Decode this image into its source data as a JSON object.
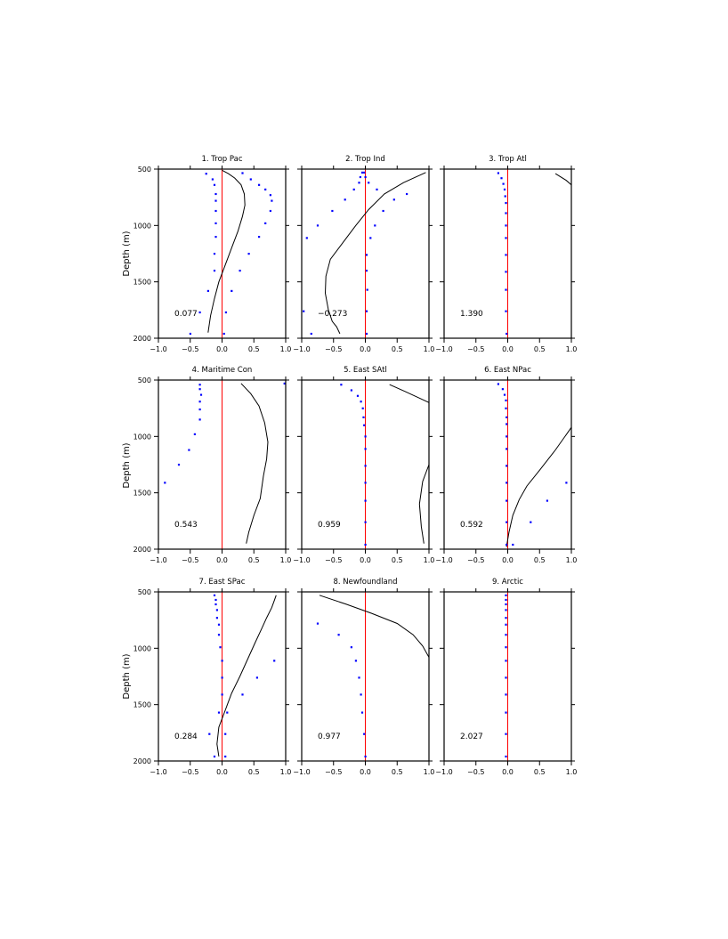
{
  "figure": {
    "ylabel": "Depth (m)"
  },
  "axes": {
    "x_ticks": [
      -1.0,
      -0.5,
      0.0,
      0.5,
      1.0
    ],
    "x_tick_labels": [
      "−1.0",
      "−0.5",
      "0.0",
      "0.5",
      "1.0"
    ],
    "y_ticks": [
      500,
      1000,
      1500,
      2000
    ],
    "y_tick_labels": [
      "500",
      "1000",
      "1500",
      "2000"
    ],
    "xlim": [
      -1.0,
      1.0
    ],
    "ylim": [
      2000,
      500
    ]
  },
  "colors": {
    "line": "#000000",
    "dots": "#0000ff",
    "zero_line": "#ff0000",
    "frame": "#000000"
  },
  "chart_data": [
    {
      "type": "line",
      "title": "1. Trop Pac",
      "value_label": "0.077",
      "series": [
        {
          "name": "",
          "style": "line",
          "points": [
            [
              0.0,
              510
            ],
            [
              0.1,
              540
            ],
            [
              0.2,
              580
            ],
            [
              0.3,
              640
            ],
            [
              0.35,
              720
            ],
            [
              0.36,
              820
            ],
            [
              0.32,
              920
            ],
            [
              0.25,
              1050
            ],
            [
              0.15,
              1200
            ],
            [
              0.05,
              1350
            ],
            [
              -0.05,
              1500
            ],
            [
              -0.12,
              1650
            ],
            [
              -0.18,
              1800
            ],
            [
              -0.22,
              1950
            ]
          ]
        },
        {
          "name": "",
          "style": "dots",
          "points": [
            [
              -0.25,
              540
            ],
            [
              -0.15,
              590
            ],
            [
              -0.12,
              640
            ],
            [
              -0.1,
              720
            ],
            [
              -0.1,
              780
            ],
            [
              -0.1,
              870
            ],
            [
              -0.1,
              980
            ],
            [
              -0.1,
              1100
            ],
            [
              -0.12,
              1250
            ],
            [
              -0.12,
              1400
            ],
            [
              -0.22,
              1580
            ],
            [
              -0.35,
              1770
            ],
            [
              -0.5,
              1960
            ],
            [
              0.32,
              535
            ],
            [
              0.45,
              590
            ],
            [
              0.58,
              640
            ],
            [
              0.68,
              680
            ],
            [
              0.76,
              730
            ],
            [
              0.78,
              780
            ],
            [
              0.76,
              870
            ],
            [
              0.68,
              980
            ],
            [
              0.58,
              1100
            ],
            [
              0.42,
              1250
            ],
            [
              0.28,
              1400
            ],
            [
              0.15,
              1580
            ],
            [
              0.06,
              1770
            ],
            [
              0.03,
              1960
            ]
          ]
        }
      ]
    },
    {
      "type": "line",
      "title": "2. Trop Ind",
      "value_label": "−0.273",
      "series": [
        {
          "name": "",
          "style": "line",
          "points": [
            [
              0.95,
              530
            ],
            [
              0.6,
              620
            ],
            [
              0.3,
              720
            ],
            [
              0.05,
              860
            ],
            [
              -0.15,
              1000
            ],
            [
              -0.35,
              1150
            ],
            [
              -0.55,
              1300
            ],
            [
              -0.62,
              1450
            ],
            [
              -0.63,
              1600
            ],
            [
              -0.58,
              1750
            ],
            [
              -0.52,
              1850
            ],
            [
              -0.45,
              1900
            ],
            [
              -0.4,
              1960
            ]
          ]
        },
        {
          "name": "",
          "style": "dots",
          "points": [
            [
              -0.05,
              530
            ],
            [
              -0.08,
              570
            ],
            [
              -0.1,
              620
            ],
            [
              -0.18,
              680
            ],
            [
              -0.32,
              770
            ],
            [
              -0.52,
              870
            ],
            [
              -0.75,
              1000
            ],
            [
              -0.92,
              1110
            ],
            [
              -0.97,
              1760
            ],
            [
              -0.85,
              1960
            ],
            [
              -0.02,
              530
            ],
            [
              0.0,
              570
            ],
            [
              0.05,
              620
            ],
            [
              0.18,
              680
            ],
            [
              0.65,
              720
            ],
            [
              0.45,
              770
            ],
            [
              0.28,
              870
            ],
            [
              0.15,
              1000
            ],
            [
              0.08,
              1110
            ],
            [
              0.02,
              1260
            ],
            [
              0.02,
              1400
            ],
            [
              0.03,
              1570
            ],
            [
              0.02,
              1760
            ],
            [
              0.02,
              1960
            ]
          ]
        }
      ]
    },
    {
      "type": "line",
      "title": "3. Trop Atl",
      "value_label": "1.390",
      "series": [
        {
          "name": "",
          "style": "line",
          "points": [
            [
              0.75,
              540
            ],
            [
              0.92,
              600
            ],
            [
              1.0,
              640
            ]
          ]
        },
        {
          "name": "",
          "style": "dots",
          "points": [
            [
              -0.15,
              535
            ],
            [
              -0.1,
              580
            ],
            [
              -0.07,
              630
            ],
            [
              -0.05,
              680
            ],
            [
              -0.04,
              740
            ],
            [
              -0.03,
              800
            ],
            [
              -0.03,
              890
            ],
            [
              -0.03,
              1000
            ],
            [
              -0.03,
              1110
            ],
            [
              -0.03,
              1260
            ],
            [
              -0.03,
              1410
            ],
            [
              -0.03,
              1570
            ],
            [
              -0.03,
              1760
            ],
            [
              -0.02,
              1960
            ]
          ]
        }
      ]
    },
    {
      "type": "line",
      "title": "4. Maritime Con",
      "value_label": "0.543",
      "series": [
        {
          "name": "",
          "style": "line",
          "points": [
            [
              0.3,
              530
            ],
            [
              0.45,
              620
            ],
            [
              0.58,
              730
            ],
            [
              0.67,
              880
            ],
            [
              0.72,
              1050
            ],
            [
              0.7,
              1200
            ],
            [
              0.65,
              1350
            ],
            [
              0.6,
              1550
            ],
            [
              0.5,
              1700
            ],
            [
              0.42,
              1850
            ],
            [
              0.38,
              1950
            ]
          ]
        },
        {
          "name": "",
          "style": "dots",
          "points": [
            [
              0.98,
              530
            ],
            [
              -0.35,
              540
            ],
            [
              -0.35,
              580
            ],
            [
              -0.33,
              630
            ],
            [
              -0.35,
              690
            ],
            [
              -0.35,
              760
            ],
            [
              -0.35,
              850
            ],
            [
              -0.43,
              980
            ],
            [
              -0.52,
              1120
            ],
            [
              -0.68,
              1250
            ],
            [
              -0.9,
              1410
            ]
          ]
        }
      ]
    },
    {
      "type": "line",
      "title": "5. East SAtl",
      "value_label": "0.959",
      "series": [
        {
          "name": "",
          "style": "line",
          "points": [
            [
              0.38,
              540
            ],
            [
              0.62,
              600
            ],
            [
              0.85,
              660
            ],
            [
              1.0,
              700
            ]
          ]
        },
        {
          "name": "",
          "style": "line",
          "points": [
            [
              1.0,
              1250
            ],
            [
              0.9,
              1400
            ],
            [
              0.85,
              1600
            ],
            [
              0.88,
              1800
            ],
            [
              0.92,
              1950
            ]
          ]
        },
        {
          "name": "",
          "style": "dots",
          "points": [
            [
              -0.38,
              540
            ],
            [
              -0.22,
              590
            ],
            [
              -0.12,
              640
            ],
            [
              -0.07,
              690
            ],
            [
              -0.04,
              750
            ],
            [
              -0.03,
              830
            ],
            [
              -0.02,
              900
            ],
            [
              0.0,
              1000
            ],
            [
              0.0,
              1110
            ],
            [
              0.0,
              1260
            ],
            [
              0.0,
              1410
            ],
            [
              0.0,
              1570
            ],
            [
              0.0,
              1760
            ],
            [
              0.0,
              1960
            ]
          ]
        }
      ]
    },
    {
      "type": "line",
      "title": "6. East NPac",
      "value_label": "0.592",
      "series": [
        {
          "name": "",
          "style": "line",
          "points": [
            [
              1.0,
              920
            ],
            [
              0.75,
              1120
            ],
            [
              0.5,
              1300
            ],
            [
              0.3,
              1440
            ],
            [
              0.18,
              1560
            ],
            [
              0.08,
              1700
            ],
            [
              0.02,
              1850
            ],
            [
              -0.02,
              1980
            ]
          ]
        },
        {
          "name": "",
          "style": "dots",
          "points": [
            [
              -0.15,
              535
            ],
            [
              -0.08,
              580
            ],
            [
              -0.05,
              630
            ],
            [
              -0.03,
              680
            ],
            [
              -0.03,
              750
            ],
            [
              -0.02,
              830
            ],
            [
              -0.02,
              890
            ],
            [
              -0.02,
              1000
            ],
            [
              -0.02,
              1110
            ],
            [
              -0.02,
              1260
            ],
            [
              -0.02,
              1410
            ],
            [
              -0.02,
              1570
            ],
            [
              -0.02,
              1760
            ],
            [
              -0.02,
              1960
            ],
            [
              0.92,
              1410
            ],
            [
              0.62,
              1570
            ],
            [
              0.36,
              1760
            ],
            [
              0.08,
              1960
            ]
          ]
        }
      ]
    },
    {
      "type": "line",
      "title": "7. East SPac",
      "value_label": "0.284",
      "series": [
        {
          "name": "",
          "style": "line",
          "points": [
            [
              0.85,
              530
            ],
            [
              0.82,
              580
            ],
            [
              0.78,
              640
            ],
            [
              0.7,
              730
            ],
            [
              0.62,
              830
            ],
            [
              0.52,
              950
            ],
            [
              0.4,
              1100
            ],
            [
              0.28,
              1250
            ],
            [
              0.15,
              1400
            ],
            [
              0.05,
              1550
            ],
            [
              -0.05,
              1700
            ],
            [
              -0.08,
              1850
            ],
            [
              -0.05,
              1960
            ]
          ]
        },
        {
          "name": "",
          "style": "dots",
          "points": [
            [
              -0.12,
              530
            ],
            [
              -0.1,
              570
            ],
            [
              -0.1,
              610
            ],
            [
              -0.08,
              660
            ],
            [
              -0.08,
              730
            ],
            [
              -0.05,
              790
            ],
            [
              -0.05,
              880
            ],
            [
              -0.03,
              990
            ],
            [
              0.0,
              1110
            ],
            [
              0.0,
              1260
            ],
            [
              0.0,
              1410
            ],
            [
              -0.05,
              1570
            ],
            [
              -0.2,
              1760
            ],
            [
              -0.12,
              1960
            ],
            [
              0.82,
              1110
            ],
            [
              0.55,
              1260
            ],
            [
              0.32,
              1410
            ],
            [
              0.08,
              1570
            ],
            [
              0.05,
              1760
            ],
            [
              0.05,
              1960
            ]
          ]
        }
      ]
    },
    {
      "type": "line",
      "title": "8. Newfoundland",
      "value_label": "0.977",
      "series": [
        {
          "name": "",
          "style": "line",
          "points": [
            [
              -0.72,
              530
            ],
            [
              -0.3,
              610
            ],
            [
              0.1,
              690
            ],
            [
              0.5,
              780
            ],
            [
              0.75,
              880
            ],
            [
              0.9,
              980
            ],
            [
              1.0,
              1080
            ]
          ]
        },
        {
          "name": "",
          "style": "dots",
          "points": [
            [
              -0.75,
              780
            ],
            [
              -0.42,
              880
            ],
            [
              -0.22,
              990
            ],
            [
              -0.15,
              1110
            ],
            [
              -0.1,
              1260
            ],
            [
              -0.07,
              1410
            ],
            [
              -0.05,
              1570
            ],
            [
              -0.02,
              1760
            ],
            [
              0.0,
              1960
            ]
          ]
        }
      ]
    },
    {
      "type": "line",
      "title": "9. Arctic",
      "value_label": "2.027",
      "series": [
        {
          "name": "",
          "style": "dots",
          "points": [
            [
              -0.03,
              530
            ],
            [
              -0.03,
              570
            ],
            [
              -0.03,
              610
            ],
            [
              -0.03,
              660
            ],
            [
              -0.03,
              730
            ],
            [
              -0.03,
              790
            ],
            [
              -0.03,
              880
            ],
            [
              -0.03,
              990
            ],
            [
              -0.03,
              1110
            ],
            [
              -0.03,
              1260
            ],
            [
              -0.03,
              1410
            ],
            [
              -0.03,
              1570
            ],
            [
              -0.03,
              1760
            ],
            [
              -0.03,
              1960
            ]
          ]
        }
      ]
    }
  ]
}
